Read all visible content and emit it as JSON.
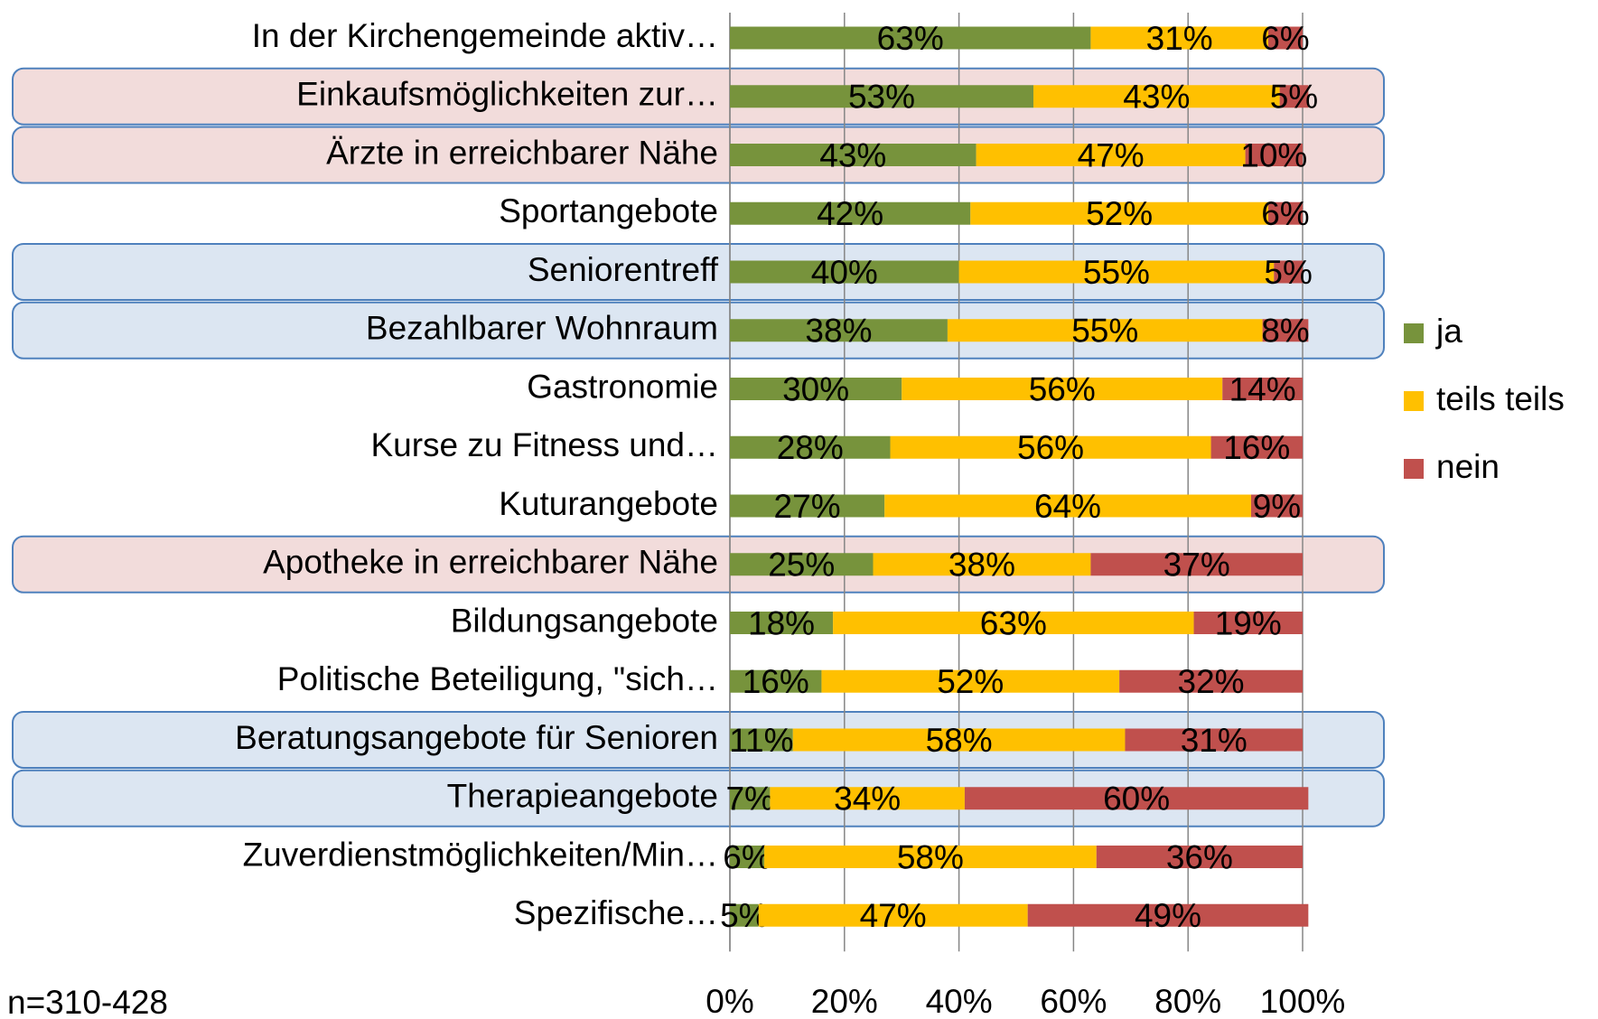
{
  "chart_data": {
    "type": "stacked_bar_horizontal",
    "categories": [
      "In der Kirchengemeinde aktiv…",
      "Einkaufsmöglichkeiten zur…",
      "Ärzte in erreichbarer Nähe",
      "Sportangebote",
      "Seniorentreff",
      "Bezahlbarer Wohnraum",
      "Gastronomie",
      "Kurse zu Fitness und…",
      "Kuturangebote",
      "Apotheke in erreichbarer Nähe",
      "Bildungsangebote",
      "Politische Beteiligung, \"sich…",
      "Beratungsangebote für Senioren",
      "Therapieangebote",
      "Zuverdienstmöglichkeiten/Min…",
      "Spezifische…"
    ],
    "series": [
      {
        "name": "ja",
        "color": "#77933c",
        "values": [
          63,
          53,
          43,
          42,
          40,
          38,
          30,
          28,
          27,
          25,
          18,
          16,
          11,
          7,
          6,
          5
        ],
        "value_labels": [
          "63%",
          "53%",
          "43%",
          "42%",
          "40%",
          "38%",
          "30%",
          "28%",
          "27%",
          "25%",
          "18%",
          "16%",
          "11%",
          "7%",
          "6%",
          "5%"
        ]
      },
      {
        "name": "teils teils",
        "color": "#ffc000",
        "values": [
          31,
          43,
          47,
          52,
          55,
          55,
          56,
          56,
          64,
          38,
          63,
          52,
          58,
          34,
          58,
          47
        ],
        "value_labels": [
          "31%",
          "43%",
          "47%",
          "52%",
          "55%",
          "55%",
          "56%",
          "56%",
          "64%",
          "38%",
          "63%",
          "52%",
          "58%",
          "34%",
          "58%",
          "47%"
        ]
      },
      {
        "name": "nein",
        "color": "#c0504d",
        "values": [
          6,
          5,
          10,
          6,
          5,
          8,
          14,
          16,
          9,
          37,
          19,
          32,
          31,
          60,
          36,
          49
        ],
        "value_labels": [
          "6%",
          "5%",
          "10%",
          "6%",
          "5%",
          "8%",
          "14%",
          "16%",
          "9%",
          "37%",
          "19%",
          "32%",
          "31%",
          "60%",
          "36%",
          "49%"
        ]
      }
    ],
    "row_highlights": [
      null,
      "#f2dcdb",
      "#f2dcdb",
      null,
      "#dce6f2",
      "#dce6f2",
      null,
      null,
      null,
      "#f2dcdb",
      null,
      null,
      "#dce6f2",
      "#dce6f2",
      null,
      null
    ],
    "xlim": [
      0,
      100
    ],
    "xticks": [
      {
        "value": 0,
        "label": "0%"
      },
      {
        "value": 20,
        "label": "20%"
      },
      {
        "value": 40,
        "label": "40%"
      },
      {
        "value": 60,
        "label": "60%"
      },
      {
        "value": 80,
        "label": "80%"
      },
      {
        "value": 100,
        "label": "100%"
      }
    ],
    "grid": true,
    "legend": "right",
    "note": "n=310-428"
  }
}
